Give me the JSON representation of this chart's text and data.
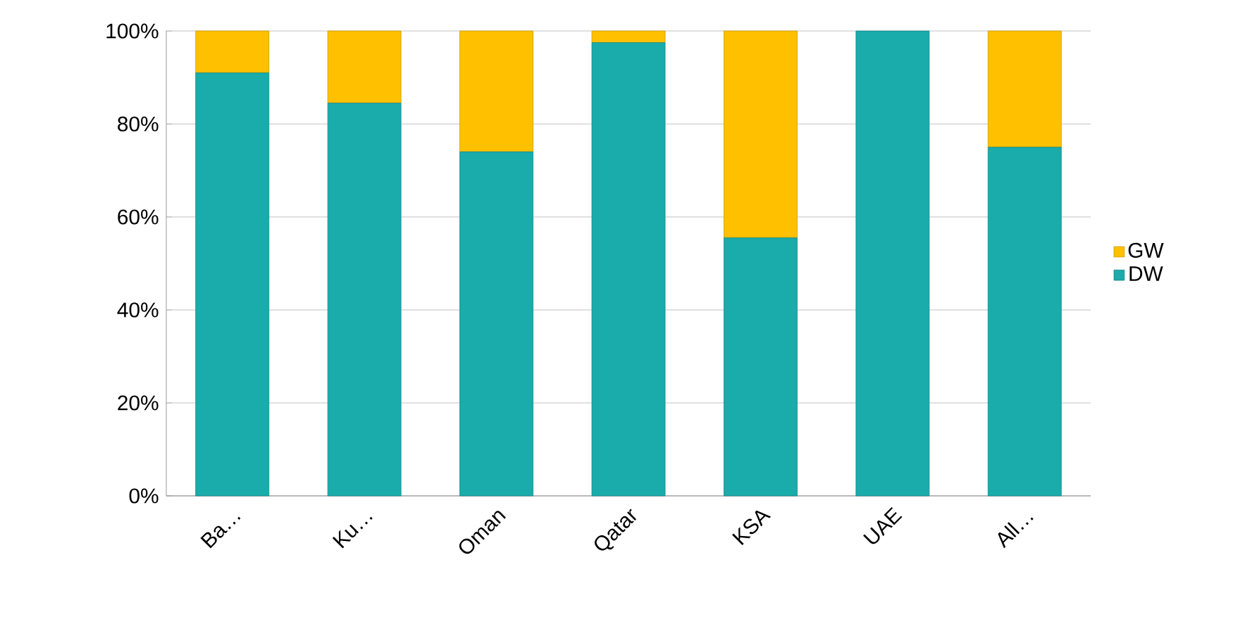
{
  "chart_data": {
    "type": "bar",
    "stacked": true,
    "categories": [
      "Ba…",
      "Ku…",
      "Oman",
      "Qatar",
      "KSA",
      "UAE",
      "All…"
    ],
    "series": [
      {
        "name": "DW",
        "color": "#1aabab",
        "values": [
          91,
          84.5,
          74,
          97.5,
          55.5,
          100,
          75
        ]
      },
      {
        "name": "GW",
        "color": "#ffc000",
        "values": [
          9,
          15.5,
          26,
          2.5,
          44.5,
          0,
          25
        ]
      }
    ],
    "ylim": [
      0,
      100
    ],
    "yticks": [
      {
        "value": 0,
        "label": "0%"
      },
      {
        "value": 20,
        "label": "20%"
      },
      {
        "value": 40,
        "label": "40%"
      },
      {
        "value": 60,
        "label": "60%"
      },
      {
        "value": 80,
        "label": "80%"
      },
      {
        "value": 100,
        "label": "100%"
      }
    ],
    "grid": "y",
    "legend": "right"
  }
}
